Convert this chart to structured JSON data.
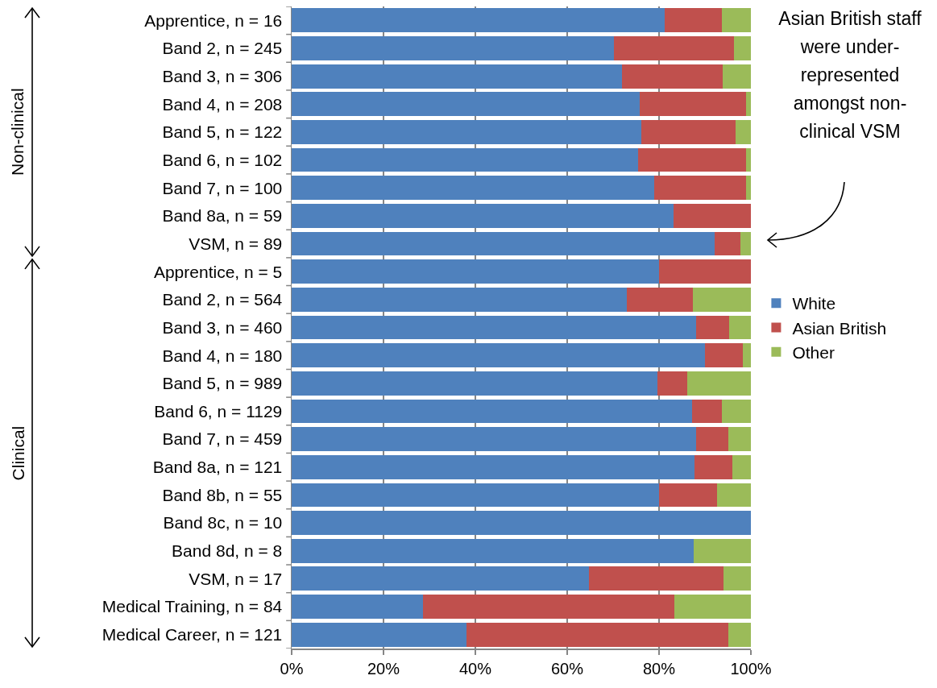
{
  "chart_data": {
    "type": "bar",
    "orientation": "horizontal",
    "stacked": true,
    "categories": [
      "Apprentice, n = 16",
      "Band 2, n = 245",
      "Band 3, n = 306",
      "Band 4, n = 208",
      "Band 5, n = 122",
      "Band 6, n = 102",
      "Band 7, n = 100",
      "Band 8a, n = 59",
      "VSM, n = 89",
      "Apprentice, n = 5",
      "Band 2, n = 564",
      "Band 3, n = 460",
      "Band 4, n = 180",
      "Band 5, n = 989",
      "Band 6, n = 1129",
      "Band 7, n = 459",
      "Band 8a, n = 121",
      "Band 8b, n = 55",
      "Band 8c, n = 10",
      "Band 8d, n = 8",
      "VSM, n = 17",
      "Medical Training, n = 84",
      "Medical Career, n = 121"
    ],
    "series": [
      {
        "name": "White",
        "color": "#4f81bd",
        "values": [
          81.2,
          70.2,
          71.9,
          75.8,
          76.2,
          75.5,
          79,
          83.1,
          92.1,
          80,
          73,
          88.1,
          90,
          79.7,
          87.2,
          88,
          87.7,
          80,
          100,
          87.5,
          64.7,
          28.6,
          38
        ]
      },
      {
        "name": "Asian British",
        "color": "#c0504d",
        "values": [
          12.5,
          26.1,
          21.9,
          23.1,
          20.5,
          23.5,
          20,
          16.9,
          5.6,
          20,
          14.4,
          7.2,
          8.3,
          6.5,
          6.4,
          7,
          8.2,
          12.7,
          0,
          0,
          29.4,
          54.8,
          57
        ]
      },
      {
        "name": "Other",
        "color": "#9bbb59",
        "values": [
          6.3,
          3.7,
          6.2,
          1.1,
          3.3,
          1,
          1,
          0,
          2.3,
          0,
          12.6,
          4.7,
          1.7,
          13.8,
          6.4,
          5,
          4.1,
          7.3,
          0,
          12.5,
          5.9,
          16.6,
          5
        ]
      }
    ],
    "xlim": [
      0,
      100
    ],
    "xticks": [
      {
        "value": 0,
        "label": "0%"
      },
      {
        "value": 20,
        "label": "20%"
      },
      {
        "value": 40,
        "label": "40%"
      },
      {
        "value": 60,
        "label": "60%"
      },
      {
        "value": 80,
        "label": "80%"
      },
      {
        "value": 100,
        "label": "100%"
      }
    ],
    "grid": "x",
    "legend": "right",
    "annotations": [
      "Non-clinical",
      "Clinical",
      "Asian British staff were under-represented amongst non-clinical VSM"
    ]
  }
}
